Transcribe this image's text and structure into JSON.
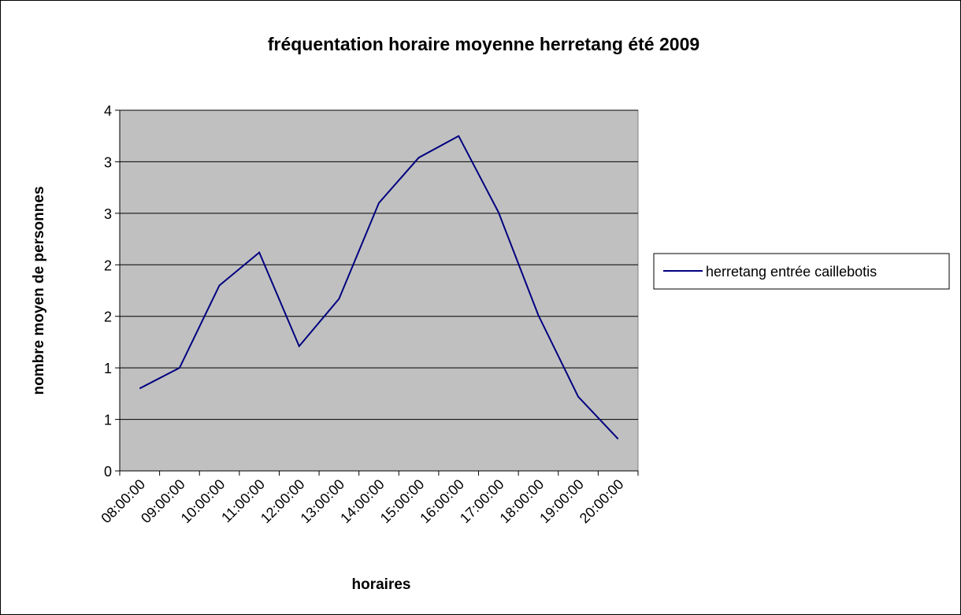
{
  "chart_data": {
    "type": "line",
    "title": "fréquentation horaire moyenne herretang été 2009",
    "x_label": "horaires",
    "y_label": "nombre moyen de personnes",
    "categories": [
      "08:00:00",
      "09:00:00",
      "10:00:00",
      "11:00:00",
      "12:00:00",
      "13:00:00",
      "14:00:00",
      "15:00:00",
      "16:00:00",
      "17:00:00",
      "18:00:00",
      "19:00:00",
      "20:00:00"
    ],
    "series": [
      {
        "name": "herretang entrée caillebotis",
        "color": "#000080",
        "values": [
          0.8,
          1.0,
          1.8,
          2.12,
          1.21,
          1.67,
          2.6,
          3.04,
          3.25,
          2.51,
          1.51,
          0.72,
          0.31
        ]
      }
    ],
    "ylim": [
      0,
      3.5
    ],
    "yticks": [
      0,
      {
        "value": 0.5,
        "label": "1"
      },
      1,
      {
        "value": 1.5,
        "label": "2"
      },
      2,
      {
        "value": 2.5,
        "label": "3"
      },
      3,
      {
        "value": 3.5,
        "label": "4"
      }
    ],
    "grid": true,
    "legend": "right",
    "plot_background": "#c0c0c0"
  }
}
